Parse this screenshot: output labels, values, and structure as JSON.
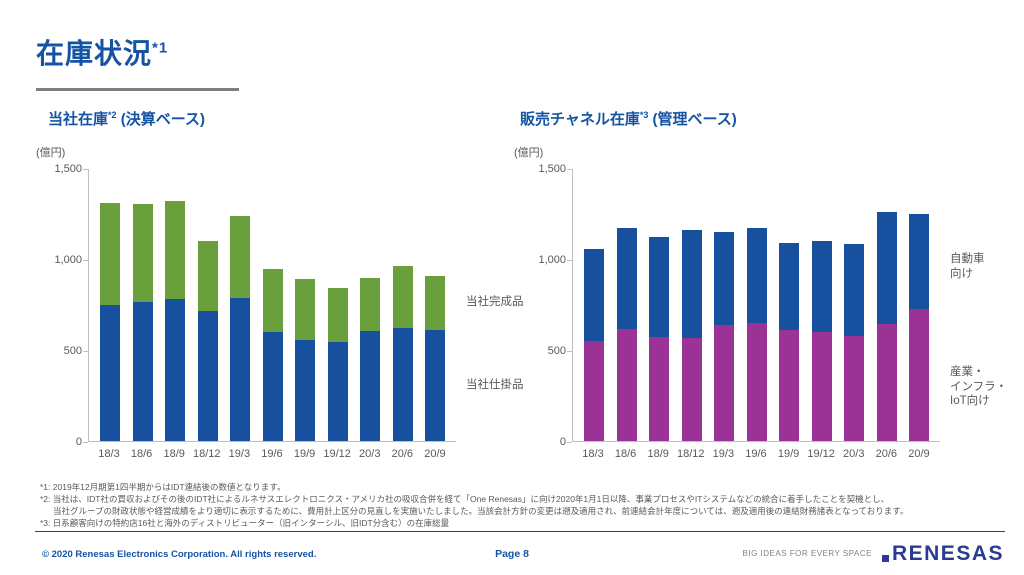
{
  "header": {
    "title": "在庫状況",
    "title_sup": "*1"
  },
  "colors": {
    "accent_blue": "#1553a4",
    "bar_blue": "#17509e",
    "bar_green": "#699f3c",
    "bar_purple": "#9b3397",
    "axis_gray": "#bfbfbf",
    "text_gray": "#595959",
    "logo_blue": "#2b3a94"
  },
  "chart_data": [
    {
      "type": "bar",
      "stacked": true,
      "title_main": "当社在庫",
      "title_sup": "*2",
      "title_rest": " (決算ベース)",
      "unit_label": "(億円)",
      "categories": [
        "18/3",
        "18/6",
        "18/9",
        "18/12",
        "19/3",
        "19/6",
        "19/9",
        "19/12",
        "20/3",
        "20/6",
        "20/9"
      ],
      "series": [
        {
          "name": "当社仕掛品",
          "color": "#17509e",
          "values": [
            750,
            765,
            780,
            715,
            785,
            600,
            555,
            545,
            605,
            620,
            610
          ]
        },
        {
          "name": "当社完成品",
          "color": "#699f3c",
          "values": [
            560,
            535,
            540,
            385,
            450,
            345,
            335,
            295,
            290,
            340,
            295
          ]
        }
      ],
      "ylim": [
        0,
        1500
      ],
      "yticks": [
        {
          "value": 0,
          "label": "0"
        },
        {
          "value": 500,
          "label": "500"
        },
        {
          "value": 1000,
          "label": "1,000"
        },
        {
          "value": 1500,
          "label": "1,500"
        }
      ],
      "grid": false,
      "legend_position": "right-of-plot",
      "side_labels": [
        {
          "text": "当社完成品",
          "top": 126
        },
        {
          "text": "当社仕掛品",
          "top": 209
        }
      ]
    },
    {
      "type": "bar",
      "stacked": true,
      "title_main": "販売チャネル在庫",
      "title_sup": "*3",
      "title_rest": " (管理ベース)",
      "unit_label": "(億円)",
      "categories": [
        "18/3",
        "18/6",
        "18/9",
        "18/12",
        "19/3",
        "19/6",
        "19/9",
        "19/12",
        "20/3",
        "20/6",
        "20/9"
      ],
      "series": [
        {
          "name": "産業・インフラ・IoT向け",
          "color": "#9b3397",
          "values": [
            550,
            615,
            570,
            565,
            635,
            650,
            610,
            600,
            575,
            645,
            725
          ]
        },
        {
          "name": "自動車向け",
          "color": "#17509e",
          "values": [
            505,
            555,
            550,
            595,
            515,
            520,
            480,
            500,
            510,
            615,
            525
          ]
        }
      ],
      "ylim": [
        0,
        1500
      ],
      "yticks": [
        {
          "value": 0,
          "label": "0"
        },
        {
          "value": 500,
          "label": "500"
        },
        {
          "value": 1000,
          "label": "1,000"
        },
        {
          "value": 1500,
          "label": "1,500"
        }
      ],
      "grid": false,
      "legend_position": "right-of-plot",
      "side_labels": [
        {
          "text": "自動車\n向け",
          "top": 83
        },
        {
          "text": "産業・\nインフラ・\nIoT向け",
          "top": 196
        }
      ]
    }
  ],
  "footnotes": [
    "*1: 2019年12月期第1四半期からはIDT連結後の数値となります。",
    "*2: 当社は、IDT社の買収およびその後のIDT社によるルネサスエレクトロニクス・アメリカ社の吸収合併を経て「One Renesas」に向け2020年1月1日以降、事業プロセスやITシステムなどの統合に着手したことを契機とし、",
    "当社グループの財政状態や経営成績をより適切に表示するために、費用計上区分の見直しを実施いたしました。当該会計方針の変更は遡及適用され、前連結会計年度については、遡及適用後の連結財務諸表となっております。",
    "*3: 日系顧客向けの特約店16社と海外のディストリビューター（旧インターシル、旧IDT分含む）の在庫総量"
  ],
  "footer": {
    "copyright": "© 2020 Renesas Electronics Corporation. All rights reserved.",
    "page_label": "Page 8",
    "tagline": "BIG IDEAS FOR EVERY SPACE",
    "logo_text": "RENESAS"
  }
}
